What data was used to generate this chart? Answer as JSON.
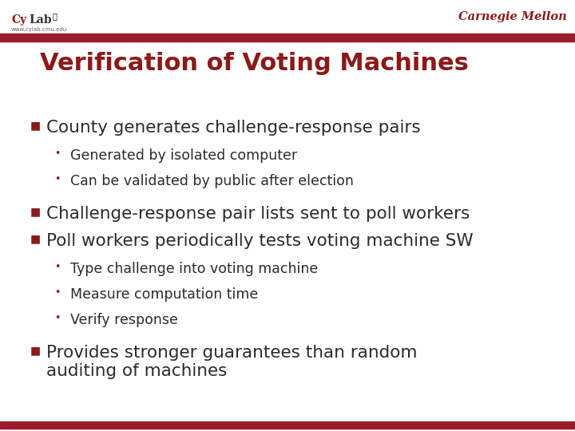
{
  "title": "Verification of Voting Machines",
  "title_color": "#8B1A1A",
  "title_fontsize": 22,
  "background_color": "#FFFFFF",
  "header_bar_color": "#9B1B2A",
  "footer_bar_color": "#9B1B2A",
  "cylab_cy_color": "#8B1A1A",
  "cylab_lab_color": "#333333",
  "cylab_url": "www.cylab.cmu.edu",
  "cmu_text": "Carnegie Mellon",
  "bullet_color": "#8B1A1A",
  "text_color": "#2B2B2B",
  "sub_text_color": "#2B2B2B",
  "bullet1_main": "County generates challenge-response pairs",
  "bullet1_subs": [
    "Generated by isolated computer",
    "Can be validated by public after election"
  ],
  "bullet2_main": "Challenge-response pair lists sent to poll workers",
  "bullet3_main": "Poll workers periodically tests voting machine SW",
  "bullet3_subs": [
    "Type challenge into voting machine",
    "Measure computation time",
    "Verify response"
  ],
  "bullet4_main": "Provides stronger guarantees than random\nauditing of machines",
  "main_fontsize": 15.5,
  "sub_fontsize": 12.5
}
